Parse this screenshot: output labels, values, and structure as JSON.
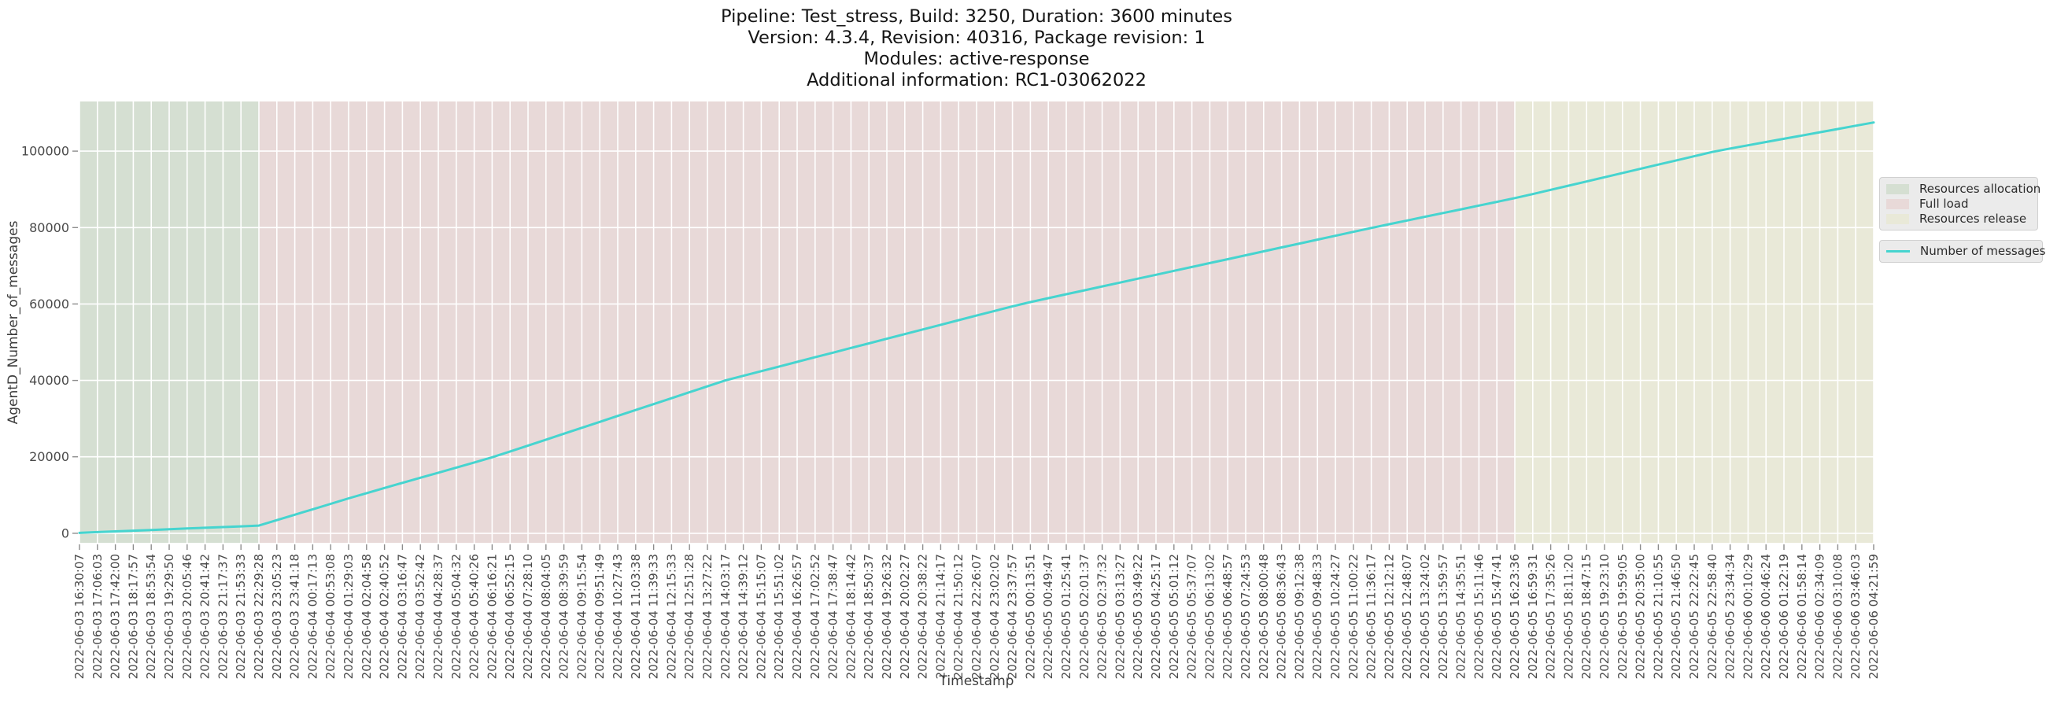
{
  "chart_data": {
    "type": "line",
    "title_lines": [
      "Pipeline: Test_stress, Build: 3250, Duration: 3600 minutes",
      "Version: 4.3.4, Revision: 40316, Package revision: 1",
      "Modules: active-response",
      "Additional information: RC1-03062022"
    ],
    "xlabel": "Timestamp",
    "ylabel": "AgentD_Number_of_messages",
    "y_ticks": [
      0,
      20000,
      40000,
      60000,
      80000,
      100000
    ],
    "ylim": [
      -2500,
      113000
    ],
    "grid": true,
    "legend_position": "right-outside",
    "x_tick_labels": [
      "2022-06-03 16:30:07",
      "2022-06-03 17:06:03",
      "2022-06-03 17:42:00",
      "2022-06-03 18:17:57",
      "2022-06-03 18:53:54",
      "2022-06-03 19:29:50",
      "2022-06-03 20:05:46",
      "2022-06-03 20:41:42",
      "2022-06-03 21:17:37",
      "2022-06-03 21:53:33",
      "2022-06-03 22:29:28",
      "2022-06-03 23:05:23",
      "2022-06-03 23:41:18",
      "2022-06-04 00:17:13",
      "2022-06-04 00:53:08",
      "2022-06-04 01:29:03",
      "2022-06-04 02:04:58",
      "2022-06-04 02:40:52",
      "2022-06-04 03:16:47",
      "2022-06-04 03:52:42",
      "2022-06-04 04:28:37",
      "2022-06-04 05:04:32",
      "2022-06-04 05:40:26",
      "2022-06-04 06:16:21",
      "2022-06-04 06:52:15",
      "2022-06-04 07:28:10",
      "2022-06-04 08:04:05",
      "2022-06-04 08:39:59",
      "2022-06-04 09:15:54",
      "2022-06-04 09:51:49",
      "2022-06-04 10:27:43",
      "2022-06-04 11:03:38",
      "2022-06-04 11:39:33",
      "2022-06-04 12:15:33",
      "2022-06-04 12:51:28",
      "2022-06-04 13:27:22",
      "2022-06-04 14:03:17",
      "2022-06-04 14:39:12",
      "2022-06-04 15:15:07",
      "2022-06-04 15:51:02",
      "2022-06-04 16:26:57",
      "2022-06-04 17:02:52",
      "2022-06-04 17:38:47",
      "2022-06-04 18:14:42",
      "2022-06-04 18:50:37",
      "2022-06-04 19:26:32",
      "2022-06-04 20:02:27",
      "2022-06-04 20:38:22",
      "2022-06-04 21:14:17",
      "2022-06-04 21:50:12",
      "2022-06-04 22:26:07",
      "2022-06-04 23:02:02",
      "2022-06-04 23:37:57",
      "2022-06-05 00:13:51",
      "2022-06-05 00:49:47",
      "2022-06-05 01:25:41",
      "2022-06-05 02:01:37",
      "2022-06-05 02:37:32",
      "2022-06-05 03:13:27",
      "2022-06-05 03:49:22",
      "2022-06-05 04:25:17",
      "2022-06-05 05:01:12",
      "2022-06-05 05:37:07",
      "2022-06-05 06:13:02",
      "2022-06-05 06:48:57",
      "2022-06-05 07:24:53",
      "2022-06-05 08:00:48",
      "2022-06-05 08:36:43",
      "2022-06-05 09:12:38",
      "2022-06-05 09:48:33",
      "2022-06-05 10:24:27",
      "2022-06-05 11:00:22",
      "2022-06-05 11:36:17",
      "2022-06-05 12:12:12",
      "2022-06-05 12:48:07",
      "2022-06-05 13:24:02",
      "2022-06-05 13:59:57",
      "2022-06-05 14:35:51",
      "2022-06-05 15:11:46",
      "2022-06-05 15:47:41",
      "2022-06-05 16:23:36",
      "2022-06-05 16:59:31",
      "2022-06-05 17:35:26",
      "2022-06-05 18:11:20",
      "2022-06-05 18:47:15",
      "2022-06-05 19:23:10",
      "2022-06-05 19:59:05",
      "2022-06-05 20:35:00",
      "2022-06-05 21:10:55",
      "2022-06-05 21:46:50",
      "2022-06-05 22:22:45",
      "2022-06-05 22:58:40",
      "2022-06-05 23:34:34",
      "2022-06-06 00:10:29",
      "2022-06-06 00:46:24",
      "2022-06-06 01:22:19",
      "2022-06-06 01:58:14",
      "2022-06-06 02:34:09",
      "2022-06-06 03:10:08",
      "2022-06-06 03:46:03",
      "2022-06-06 04:21:59"
    ],
    "series": [
      {
        "name": "Number of messages",
        "color": "#46d4cf",
        "values": [
          100,
          290,
          480,
          670,
          860,
          1050,
          1240,
          1430,
          1620,
          1810,
          2000,
          3430,
          4850,
          6280,
          7700,
          9130,
          10500,
          11840,
          13180,
          14520,
          15850,
          17190,
          18530,
          19870,
          21400,
          22950,
          24500,
          26050,
          27600,
          29150,
          30700,
          32250,
          33800,
          35350,
          36900,
          38450,
          40000,
          41210,
          42420,
          43640,
          44850,
          46060,
          47270,
          48490,
          49700,
          50910,
          52120,
          53330,
          54550,
          55760,
          56970,
          58180,
          59390,
          60510,
          61530,
          62550,
          63570,
          64590,
          65610,
          66630,
          67650,
          68670,
          69690,
          70710,
          71730,
          72760,
          73780,
          74800,
          75820,
          76840,
          77860,
          78880,
          79900,
          80880,
          81850,
          82830,
          83800,
          84780,
          85760,
          86730,
          87710,
          88770,
          89870,
          90970,
          92070,
          93170,
          94280,
          95380,
          96480,
          97580,
          98680,
          99780,
          100680,
          101530,
          102390,
          103240,
          104090,
          104940,
          105800,
          106650,
          107500
        ]
      }
    ],
    "regions": [
      {
        "label": "Resources allocation",
        "color": "#d5dfd2",
        "start_index": 0,
        "end_index": 10
      },
      {
        "label": "Full load",
        "color": "#e8d9d8",
        "start_index": 10,
        "end_index": 80
      },
      {
        "label": "Resources release",
        "color": "#e9e9d8",
        "start_index": 80,
        "end_index": 100
      }
    ]
  }
}
